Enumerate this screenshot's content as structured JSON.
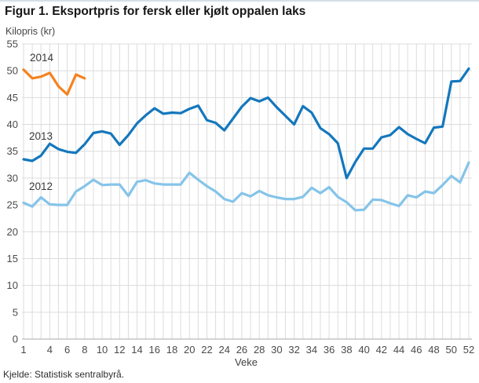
{
  "figure": {
    "title": "Figur 1. Eksportpris for fersk eller kjølt oppalen laks",
    "y_axis_unit": "Kilopris (kr)",
    "x_axis_title": "Veke",
    "source": "Kjelde: Statistisk sentralbyrå."
  },
  "colors": {
    "grid": "#dcdcdc",
    "baseline": "#a8a8a8",
    "tick_text": "#4a4a4a",
    "series_2012": "#85c4e9",
    "series_2013": "#1477bd",
    "series_2014": "#f5821e"
  },
  "chart_data": {
    "type": "line",
    "title": "Figur 1. Eksportpris for fersk eller kjølt oppalen laks",
    "xlabel": "Veke",
    "ylabel": "Kilopris (kr)",
    "x_range": [
      1,
      52
    ],
    "y_range": [
      0,
      55
    ],
    "grid": true,
    "legend_position": "inline-labels",
    "x_ticks": [
      1,
      4,
      6,
      8,
      10,
      12,
      14,
      16,
      18,
      20,
      22,
      24,
      26,
      28,
      30,
      32,
      34,
      36,
      38,
      40,
      42,
      44,
      46,
      48,
      50,
      52
    ],
    "y_ticks": [
      0,
      5,
      10,
      15,
      20,
      25,
      30,
      35,
      40,
      45,
      50,
      55
    ],
    "series": [
      {
        "name": "2012",
        "color": "#85c4e9",
        "start_week": 1,
        "values": [
          25.4,
          24.7,
          26.4,
          25.1,
          25.0,
          25.0,
          27.5,
          28.5,
          29.7,
          28.7,
          28.8,
          28.8,
          26.7,
          29.3,
          29.6,
          29.0,
          28.8,
          28.8,
          28.8,
          31.0,
          29.7,
          28.5,
          27.5,
          26.1,
          25.6,
          27.2,
          26.6,
          27.6,
          26.8,
          26.4,
          26.1,
          26.1,
          26.5,
          28.2,
          27.2,
          28.3,
          26.5,
          25.5,
          24.0,
          24.1,
          26.0,
          25.9,
          25.3,
          24.8,
          26.8,
          26.4,
          27.5,
          27.2,
          28.7,
          30.4,
          29.2,
          32.9
        ]
      },
      {
        "name": "2013",
        "color": "#1477bd",
        "start_week": 1,
        "values": [
          33.5,
          33.2,
          34.2,
          36.4,
          35.4,
          34.9,
          34.7,
          36.3,
          38.4,
          38.7,
          38.3,
          36.2,
          38.0,
          40.2,
          41.7,
          43.0,
          42.0,
          42.2,
          42.1,
          42.9,
          43.5,
          40.8,
          40.3,
          38.9,
          41.1,
          43.3,
          44.9,
          44.3,
          45.0,
          43.2,
          41.6,
          40.0,
          43.4,
          42.2,
          39.3,
          38.2,
          36.5,
          30.0,
          33.0,
          35.5,
          35.5,
          37.6,
          38.0,
          39.5,
          38.2,
          37.3,
          36.5,
          39.4,
          39.6,
          48.0,
          48.1,
          50.4
        ]
      },
      {
        "name": "2014",
        "color": "#f5821e",
        "start_week": 1,
        "values": [
          50.2,
          48.6,
          48.9,
          49.6,
          47.1,
          45.6,
          49.3,
          48.6
        ]
      }
    ]
  }
}
